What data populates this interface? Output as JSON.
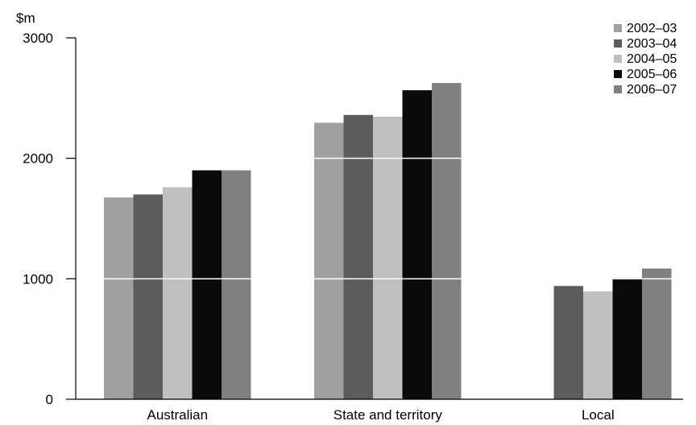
{
  "chart_data": {
    "type": "bar",
    "unit_label": "$m",
    "categories": [
      "Australian",
      "State and territory",
      "Local"
    ],
    "series": [
      {
        "name": "2002–03",
        "color": "#a0a0a0",
        "values": [
          1675,
          2295,
          null
        ]
      },
      {
        "name": "2003–04",
        "color": "#5c5c5c",
        "values": [
          1700,
          2360,
          940
        ]
      },
      {
        "name": "2004–05",
        "color": "#c0c0c0",
        "values": [
          1760,
          2345,
          895
        ]
      },
      {
        "name": "2005–06",
        "color": "#0a0a0a",
        "values": [
          1900,
          2565,
          1005
        ]
      },
      {
        "name": "2006–07",
        "color": "#808080",
        "values": [
          1900,
          2625,
          1085
        ]
      }
    ],
    "yticks": [
      "0",
      "1000",
      "2000",
      "3000"
    ],
    "ylim": [
      0,
      3000
    ],
    "gridlines": [
      1000,
      2000
    ],
    "gridline_color": "#ffffff",
    "legend_position": "top-right"
  }
}
